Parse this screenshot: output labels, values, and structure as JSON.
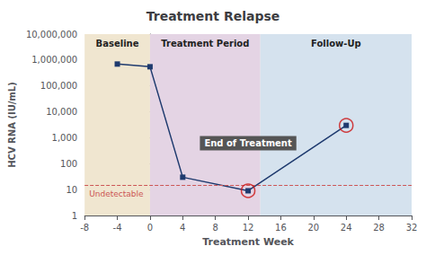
{
  "chart_data": {
    "type": "line",
    "title": "Treatment Relapse",
    "x_label": "Treatment Week",
    "y_label": "HCV RNA (IU/mL)",
    "x": [
      -4,
      0,
      4,
      12,
      24
    ],
    "values": [
      700000,
      550000,
      30,
      9,
      3000
    ],
    "color": "#1e3a6e",
    "marker": "square",
    "xlim": [
      -8,
      32
    ],
    "xticks": [
      -8,
      -4,
      0,
      4,
      8,
      12,
      16,
      20,
      24,
      28,
      32
    ],
    "ylim": [
      1,
      10000000
    ],
    "yticks": [
      1,
      10,
      100,
      {
        "value": 1000,
        "label": "1,000"
      },
      {
        "value": 10000,
        "label": "10,000"
      },
      {
        "value": 100000,
        "label": "100,000"
      },
      {
        "value": 1000000,
        "label": "1,000,000"
      },
      {
        "value": 10000000,
        "label": "10,000,000"
      }
    ],
    "log": "y",
    "grid": false,
    "regions": [
      {
        "label": "Baseline",
        "range": [
          -8,
          0
        ],
        "color": "#f0e6d0"
      },
      {
        "label": "Treatment Period",
        "range": [
          0,
          13.5
        ],
        "color": "#e4d4e4"
      },
      {
        "label": "Follow-Up",
        "range": [
          13.5,
          32
        ],
        "color": "#d5e2ee"
      }
    ],
    "reference_lines": [
      {
        "y": 15,
        "label": "Undetectable",
        "color": "#cc5555",
        "line_style": "dashed"
      }
    ],
    "circled": {
      "x": [
        12,
        24
      ],
      "color": "#cc1111"
    },
    "annotations": [
      {
        "text": "End of Treatment",
        "x": 12,
        "color": "#555555"
      }
    ]
  }
}
